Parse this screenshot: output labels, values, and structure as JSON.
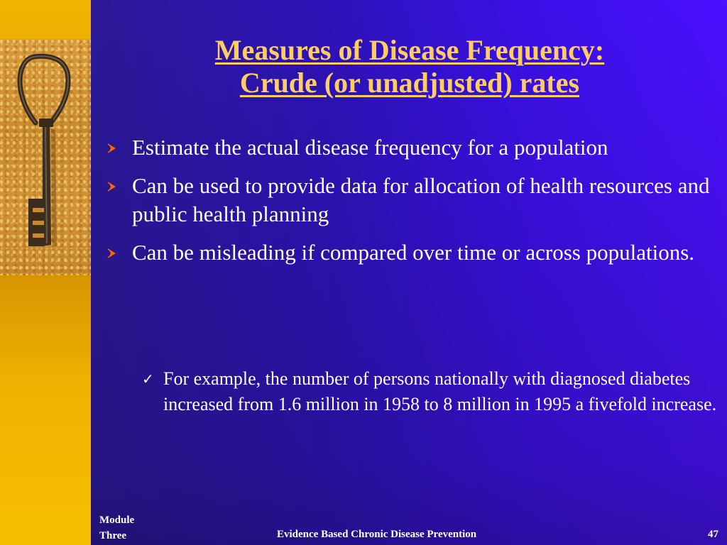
{
  "slide": {
    "title_line1": "Measures of Disease Frequency:",
    "title_line2": "Crude (or unadjusted) rates",
    "bullets": [
      {
        "text": "Estimate the actual disease frequency for a population"
      },
      {
        "text": "Can be used to provide data for allocation of health resources and public health planning"
      },
      {
        "text": "Can be misleading if compared over time or across populations."
      }
    ],
    "sub_bullet": {
      "icon": "checkmark-icon",
      "text": "For example, the number of persons nationally with diagnosed diabetes increased from 1.6 million in 1958 to 8 million in 1995 a fivefold increase."
    },
    "footer": {
      "module_line1": "Module",
      "module_line2": "Three",
      "center": "Evidence Based Chronic Disease Prevention",
      "page_number": "47"
    }
  },
  "colors": {
    "title": "#ffcc66",
    "bullet_arrow": "#ff6600",
    "text": "#ffffff",
    "left_bar": "#f0b000"
  }
}
